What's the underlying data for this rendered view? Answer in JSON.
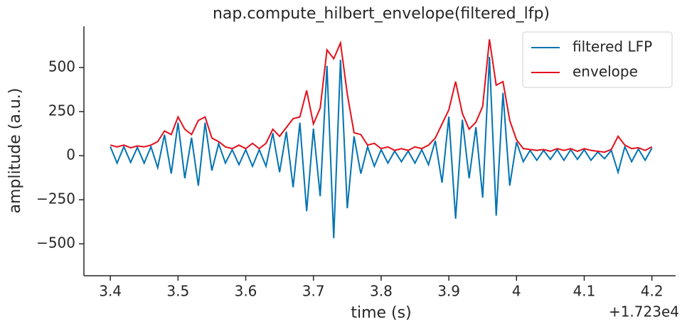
{
  "chart_data": {
    "type": "line",
    "title": "nap.compute_hilbert_envelope(filtered_lfp)",
    "x_label": "time (s)",
    "y_label": "amplitude (a.u.)",
    "x_offset": "+1.723e4",
    "legend": "upper right",
    "x": [
      3.4,
      3.41,
      3.42,
      3.43,
      3.44,
      3.45,
      3.46,
      3.47,
      3.48,
      3.49,
      3.5,
      3.51,
      3.52,
      3.53,
      3.54,
      3.55,
      3.56,
      3.57,
      3.58,
      3.59,
      3.6,
      3.61,
      3.62,
      3.63,
      3.64,
      3.65,
      3.66,
      3.67,
      3.68,
      3.69,
      3.7,
      3.71,
      3.72,
      3.73,
      3.74,
      3.75,
      3.76,
      3.77,
      3.78,
      3.79,
      3.8,
      3.81,
      3.82,
      3.83,
      3.84,
      3.85,
      3.86,
      3.87,
      3.88,
      3.89,
      3.9,
      3.91,
      3.92,
      3.93,
      3.94,
      3.95,
      3.96,
      3.97,
      3.98,
      3.99,
      4.0,
      4.01,
      4.02,
      4.03,
      4.04,
      4.05,
      4.06,
      4.07,
      4.08,
      4.09,
      4.1,
      4.11,
      4.12,
      4.13,
      4.14,
      4.15,
      4.16,
      4.17,
      4.18,
      4.19,
      4.2
    ],
    "series": [
      {
        "name": "filtered LFP",
        "color": "#0173b2",
        "values": [
          51,
          -42,
          51,
          -38,
          47,
          -42,
          51,
          -68,
          119,
          -102,
          187,
          -128,
          102,
          -170,
          187,
          -85,
          68,
          -42,
          34,
          -51,
          34,
          -60,
          34,
          -60,
          128,
          -94,
          136,
          -179,
          187,
          -315,
          153,
          -230,
          510,
          -468,
          544,
          -298,
          110,
          -102,
          51,
          -60,
          34,
          -42,
          26,
          -34,
          26,
          -42,
          34,
          -51,
          85,
          -153,
          221,
          -357,
          204,
          -128,
          162,
          -238,
          561,
          -340,
          357,
          -170,
          77,
          -34,
          30,
          -26,
          30,
          -21,
          34,
          -26,
          34,
          -21,
          34,
          -26,
          21,
          -17,
          30,
          -94,
          51,
          -34,
          38,
          -26,
          43
        ]
      },
      {
        "name": "envelope",
        "color": "#e3101c",
        "values": [
          60,
          50,
          60,
          45,
          55,
          50,
          60,
          80,
          140,
          120,
          220,
          150,
          120,
          200,
          220,
          100,
          80,
          50,
          40,
          60,
          40,
          70,
          40,
          70,
          150,
          110,
          160,
          210,
          220,
          370,
          180,
          270,
          600,
          550,
          640,
          350,
          130,
          120,
          60,
          70,
          40,
          50,
          30,
          40,
          30,
          50,
          40,
          60,
          100,
          180,
          260,
          420,
          240,
          150,
          190,
          280,
          660,
          400,
          420,
          200,
          90,
          40,
          35,
          30,
          35,
          25,
          40,
          30,
          40,
          25,
          40,
          30,
          25,
          20,
          35,
          110,
          60,
          40,
          45,
          30,
          50
        ]
      }
    ],
    "xlim": [
      3.361,
      4.235
    ],
    "ylim": [
      -681,
      734
    ],
    "xticks": [
      3.4,
      3.5,
      3.6,
      3.7,
      3.8,
      3.9,
      4.0,
      4.1,
      4.2
    ],
    "yticks": [
      {
        "value": -500,
        "label": "−500"
      },
      {
        "value": -250,
        "label": "−250"
      },
      0,
      250,
      500
    ]
  }
}
